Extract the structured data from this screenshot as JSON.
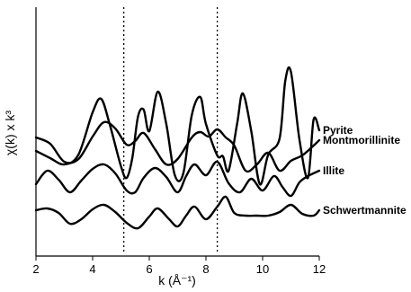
{
  "chart_data": {
    "type": "line",
    "xlabel": "k (Å⁻¹)",
    "ylabel": "χ(k) x k³",
    "xlim": [
      2,
      12
    ],
    "x_ticks": [
      2,
      4,
      6,
      8,
      10,
      12
    ],
    "y_ticks_shown": false,
    "reference_lines_x": [
      5.1,
      8.4
    ],
    "series": [
      {
        "name": "Pyrite",
        "points": [
          [
            2.0,
            168
          ],
          [
            2.5,
            176
          ],
          [
            3.0,
            183
          ],
          [
            3.5,
            172
          ],
          [
            4.0,
            125
          ],
          [
            4.3,
            110
          ],
          [
            4.6,
            138
          ],
          [
            5.0,
            185
          ],
          [
            5.2,
            198
          ],
          [
            5.4,
            176
          ],
          [
            5.6,
            130
          ],
          [
            5.8,
            122
          ],
          [
            6.0,
            146
          ],
          [
            6.3,
            102
          ],
          [
            6.6,
            138
          ],
          [
            6.9,
            195
          ],
          [
            7.2,
            193
          ],
          [
            7.5,
            128
          ],
          [
            7.8,
            108
          ],
          [
            8.0,
            138
          ],
          [
            8.4,
            173
          ],
          [
            8.6,
            174
          ],
          [
            8.8,
            190
          ],
          [
            9.1,
            138
          ],
          [
            9.3,
            104
          ],
          [
            9.6,
            146
          ],
          [
            9.9,
            205
          ],
          [
            10.2,
            172
          ],
          [
            10.6,
            154
          ],
          [
            10.8,
            90
          ],
          [
            11.0,
            80
          ],
          [
            11.3,
            155
          ],
          [
            11.6,
            198
          ],
          [
            11.8,
            133
          ],
          [
            12.0,
            145
          ]
        ]
      },
      {
        "name": "Montmorillinite",
        "points": [
          [
            2.0,
            153
          ],
          [
            2.5,
            160
          ],
          [
            3.0,
            180
          ],
          [
            3.5,
            177
          ],
          [
            4.0,
            152
          ],
          [
            4.4,
            136
          ],
          [
            4.8,
            143
          ],
          [
            5.2,
            161
          ],
          [
            5.5,
            157
          ],
          [
            5.8,
            148
          ],
          [
            6.2,
            166
          ],
          [
            6.6,
            183
          ],
          [
            7.0,
            177
          ],
          [
            7.5,
            153
          ],
          [
            7.8,
            147
          ],
          [
            8.1,
            152
          ],
          [
            8.4,
            144
          ],
          [
            8.7,
            153
          ],
          [
            9.0,
            162
          ],
          [
            9.4,
            190
          ],
          [
            9.8,
            183
          ],
          [
            10.2,
            170
          ],
          [
            10.6,
            190
          ],
          [
            11.0,
            179
          ],
          [
            11.4,
            173
          ],
          [
            11.8,
            162
          ],
          [
            12.0,
            156
          ]
        ]
      },
      {
        "name": "Illite",
        "points": [
          [
            2.0,
            205
          ],
          [
            2.4,
            190
          ],
          [
            2.8,
            200
          ],
          [
            3.2,
            214
          ],
          [
            3.6,
            201
          ],
          [
            4.0,
            188
          ],
          [
            4.4,
            183
          ],
          [
            4.8,
            193
          ],
          [
            5.2,
            212
          ],
          [
            5.5,
            214
          ],
          [
            5.8,
            198
          ],
          [
            6.2,
            187
          ],
          [
            6.6,
            197
          ],
          [
            7.0,
            214
          ],
          [
            7.3,
            196
          ],
          [
            7.6,
            183
          ],
          [
            8.0,
            195
          ],
          [
            8.4,
            180
          ],
          [
            8.8,
            204
          ],
          [
            9.2,
            214
          ],
          [
            9.6,
            199
          ],
          [
            10.0,
            212
          ],
          [
            10.4,
            196
          ],
          [
            10.7,
            208
          ],
          [
            11.0,
            218
          ],
          [
            11.3,
            203
          ],
          [
            11.6,
            196
          ],
          [
            12.0,
            190
          ]
        ]
      },
      {
        "name": "Schwertmannite",
        "points": [
          [
            2.0,
            234
          ],
          [
            2.4,
            232
          ],
          [
            2.8,
            237
          ],
          [
            3.2,
            249
          ],
          [
            3.6,
            244
          ],
          [
            4.0,
            233
          ],
          [
            4.4,
            228
          ],
          [
            4.8,
            236
          ],
          [
            5.2,
            248
          ],
          [
            5.6,
            254
          ],
          [
            6.0,
            241
          ],
          [
            6.3,
            232
          ],
          [
            6.7,
            244
          ],
          [
            7.0,
            252
          ],
          [
            7.3,
            240
          ],
          [
            7.6,
            230
          ],
          [
            8.0,
            244
          ],
          [
            8.4,
            230
          ],
          [
            8.7,
            219
          ],
          [
            9.0,
            237
          ],
          [
            9.4,
            240
          ],
          [
            9.8,
            240
          ],
          [
            10.2,
            240
          ],
          [
            10.6,
            236
          ],
          [
            11.0,
            228
          ],
          [
            11.4,
            238
          ],
          [
            11.8,
            240
          ],
          [
            12.0,
            234
          ]
        ]
      }
    ]
  }
}
